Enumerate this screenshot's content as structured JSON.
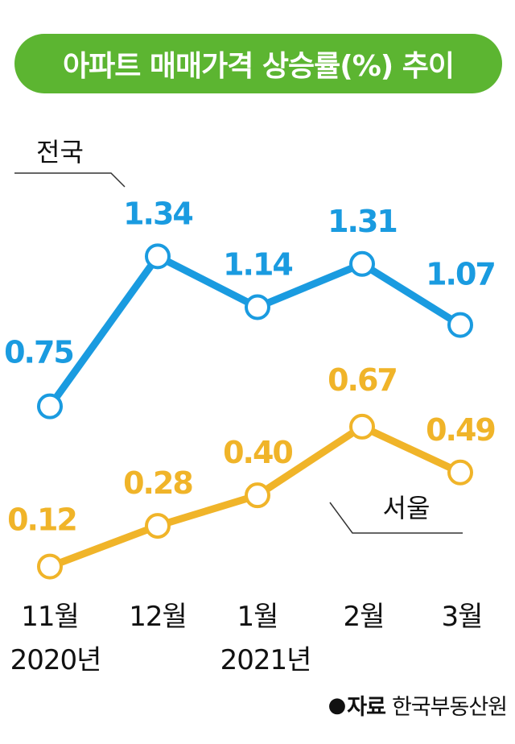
{
  "chart_data": {
    "type": "line",
    "title": "아파트 매매가격 상승률(%) 추이",
    "categories": [
      "11월",
      "12월",
      "1월",
      "2월",
      "3월"
    ],
    "year_labels": [
      "2020년",
      "2021년"
    ],
    "series": [
      {
        "name": "전국",
        "values": [
          0.75,
          1.34,
          1.14,
          1.31,
          1.07
        ],
        "value_labels": [
          "0.75",
          "1.34",
          "1.14",
          "1.31",
          "1.07"
        ],
        "color": "#1a9be0"
      },
      {
        "name": "서울",
        "values": [
          0.12,
          0.28,
          0.4,
          0.67,
          0.49
        ],
        "value_labels": [
          "0.12",
          "0.28",
          "0.40",
          "0.67",
          "0.49"
        ],
        "color": "#f0b429"
      }
    ],
    "title_bg_color": "#5cb531",
    "grid": false,
    "source_label": "자료",
    "source_name": "한국부동산원",
    "source_bullet": "●"
  }
}
